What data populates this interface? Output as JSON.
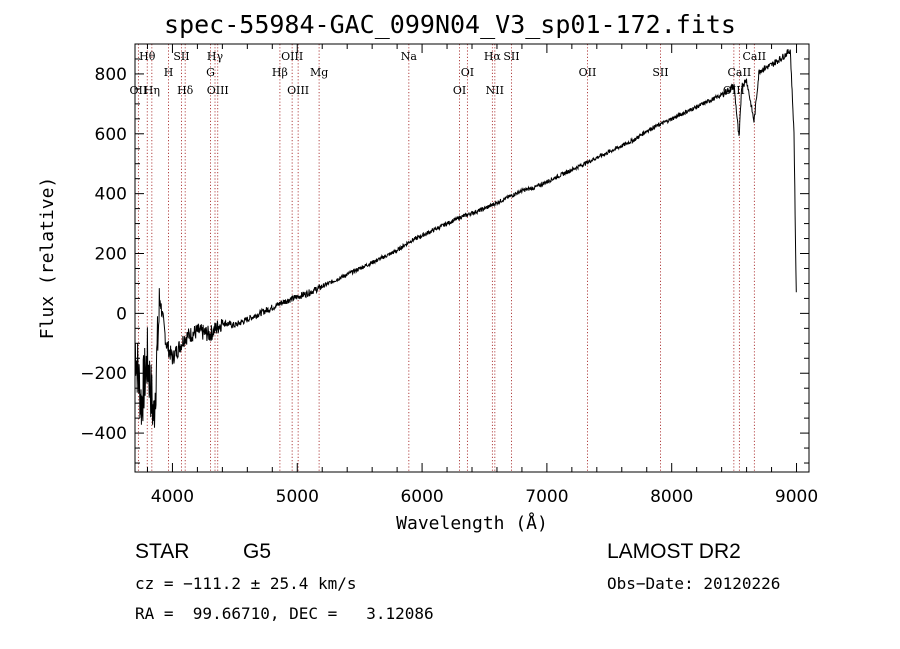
{
  "chart_data": {
    "type": "line",
    "title": "spec-55984-GAC_099N04_V3_sp01-172.fits",
    "xlabel": "Wavelength (Å)",
    "ylabel": "Flux (relative)",
    "xlim": [
      3700,
      9100
    ],
    "ylim": [
      -530,
      900
    ],
    "xticks": [
      4000,
      5000,
      6000,
      7000,
      8000,
      9000
    ],
    "yticks": [
      -400,
      -200,
      0,
      200,
      400,
      600,
      800
    ],
    "grid": false,
    "series": [
      {
        "x": [
          3700,
          3750,
          3800,
          3850,
          3900,
          3950,
          4000,
          4100,
          4200,
          4300,
          4400,
          4500,
          4600,
          4700,
          4800,
          4900,
          5000,
          5100,
          5200,
          5300,
          5400,
          5500,
          5600,
          5700,
          5800,
          5900,
          6000,
          6100,
          6200,
          6300,
          6400,
          6500,
          6600,
          6700,
          6800,
          6900,
          7000,
          7100,
          7200,
          7300,
          7400,
          7500,
          7600,
          7700,
          7800,
          7900,
          8000,
          8100,
          8200,
          8300,
          8400,
          8500,
          8540,
          8560,
          8600,
          8660,
          8700,
          8800,
          8900,
          8950,
          8980,
          9000
        ],
        "y": [
          -100,
          -300,
          -150,
          -350,
          50,
          -100,
          -150,
          -80,
          -60,
          -70,
          -30,
          -40,
          -20,
          0,
          20,
          40,
          55,
          70,
          90,
          110,
          130,
          150,
          170,
          190,
          210,
          240,
          260,
          280,
          300,
          320,
          335,
          350,
          370,
          390,
          410,
          420,
          440,
          460,
          480,
          500,
          520,
          540,
          560,
          580,
          610,
          630,
          650,
          670,
          690,
          710,
          730,
          760,
          580,
          760,
          780,
          640,
          810,
          830,
          860,
          880,
          600,
          0
        ]
      }
    ],
    "lines": [
      {
        "label": "Hθ",
        "x": 3798,
        "row": 0
      },
      {
        "label": "OII",
        "x": 3727,
        "row": 2
      },
      {
        "label": "Hη",
        "x": 3835,
        "row": 2
      },
      {
        "label": "H",
        "x": 3969,
        "row": 1
      },
      {
        "label": "SII",
        "x": 4072,
        "row": 0
      },
      {
        "label": "Hδ",
        "x": 4102,
        "row": 2
      },
      {
        "label": "Hγ",
        "x": 4341,
        "row": 0
      },
      {
        "label": "G",
        "x": 4305,
        "row": 1
      },
      {
        "label": "OIII",
        "x": 4363,
        "row": 2
      },
      {
        "label": "OIII",
        "x": 4959,
        "row": 0
      },
      {
        "label": "Hβ",
        "x": 4861,
        "row": 1
      },
      {
        "label": "OIII",
        "x": 5007,
        "row": 2
      },
      {
        "label": "Mg",
        "x": 5175,
        "row": 1
      },
      {
        "label": "Na",
        "x": 5894,
        "row": 0
      },
      {
        "label": "OI",
        "x": 6363,
        "row": 1
      },
      {
        "label": "OI",
        "x": 6300,
        "row": 2
      },
      {
        "label": "Hα",
        "x": 6563,
        "row": 0
      },
      {
        "label": "SII",
        "x": 6716,
        "row": 0
      },
      {
        "label": "NII",
        "x": 6583,
        "row": 2
      },
      {
        "label": "OII",
        "x": 7325,
        "row": 1
      },
      {
        "label": "SII",
        "x": 7910,
        "row": 1
      },
      {
        "label": "CaII",
        "x": 8662,
        "row": 0
      },
      {
        "label": "CaII",
        "x": 8542,
        "row": 1
      },
      {
        "label": "OIII",
        "x": 8498,
        "row": 2
      }
    ]
  },
  "info": {
    "class": "STAR",
    "subclass": "G5",
    "survey": "LAMOST DR2",
    "cz": "cz = −111.2 ± 25.4 km/s",
    "obs_date": "Obs−Date: 20120226",
    "radec": "RA =  99.66710, DEC =   3.12086"
  }
}
